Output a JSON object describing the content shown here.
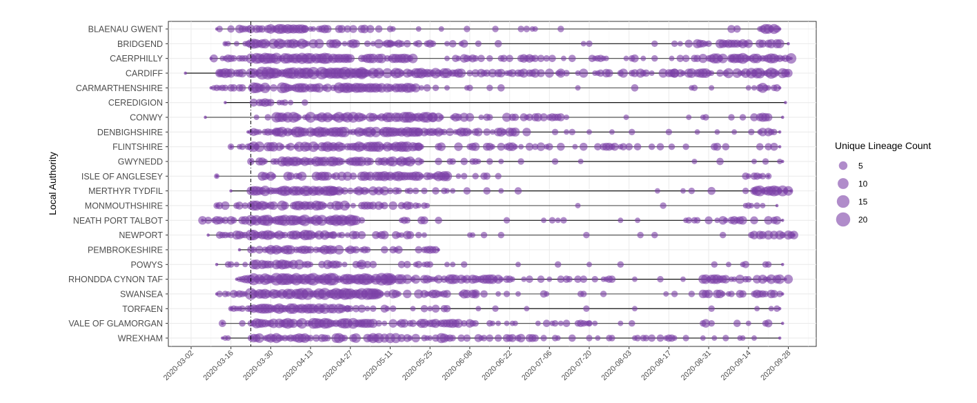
{
  "chart_data": {
    "type": "scatter",
    "subtype": "bubble-strip",
    "title": "",
    "xlabel": "",
    "ylabel": "Local Authority",
    "x_ticks": [
      "2020-03-02",
      "2020-03-16",
      "2020-03-30",
      "2020-04-13",
      "2020-04-27",
      "2020-05-11",
      "2020-05-25",
      "2020-06-08",
      "2020-06-22",
      "2020-07-06",
      "2020-07-20",
      "2020-08-03",
      "2020-08-17",
      "2020-08-31",
      "2020-09-14",
      "2020-09-28"
    ],
    "xlim": [
      "2020-02-22",
      "2020-10-07"
    ],
    "reference_line": {
      "date": "2020-03-23",
      "style": "dashed"
    },
    "point_color": "#7b3fa6",
    "point_alpha": 0.6,
    "legend": {
      "title": "Unique Lineage Count",
      "position": "right",
      "entries": [
        {
          "label": "5",
          "value": 5
        },
        {
          "label": "10",
          "value": 10
        },
        {
          "label": "15",
          "value": 15
        },
        {
          "label": "20",
          "value": 20
        }
      ]
    },
    "series": [
      {
        "name": "BLAENAU GWENT",
        "start": "2020-03-11",
        "end": "2020-09-25",
        "profile": [
          [
            9,
            14,
            0.5,
            3
          ],
          [
            17,
            23,
            0.8,
            6
          ],
          [
            23,
            40,
            0.9,
            8
          ],
          [
            40,
            60,
            0.6,
            6
          ],
          [
            60,
            70,
            0.4,
            5
          ],
          [
            70,
            130,
            0.15,
            2
          ],
          [
            130,
            180,
            0.03,
            2
          ],
          [
            180,
            200,
            0.2,
            4
          ],
          [
            200,
            206,
            0.9,
            9
          ]
        ]
      },
      {
        "name": "BRIDGEND",
        "start": "2020-03-14",
        "end": "2020-09-28",
        "profile": [
          [
            12,
            21,
            0.35,
            2
          ],
          [
            21,
            45,
            0.9,
            9
          ],
          [
            45,
            70,
            0.6,
            6
          ],
          [
            70,
            110,
            0.3,
            4
          ],
          [
            110,
            140,
            0.08,
            2
          ],
          [
            140,
            175,
            0.05,
            2
          ],
          [
            175,
            190,
            0.5,
            6
          ],
          [
            190,
            209,
            0.6,
            6
          ]
        ]
      },
      {
        "name": "CAERPHILLY",
        "start": "2020-03-09",
        "end": "2020-09-29",
        "profile": [
          [
            7,
            19,
            0.6,
            4
          ],
          [
            21,
            55,
            1.0,
            11
          ],
          [
            55,
            80,
            0.7,
            7
          ],
          [
            80,
            120,
            0.4,
            5
          ],
          [
            120,
            165,
            0.25,
            4
          ],
          [
            165,
            180,
            0.3,
            4
          ],
          [
            180,
            190,
            0.8,
            8
          ],
          [
            190,
            211,
            1.0,
            10
          ]
        ]
      },
      {
        "name": "CARDIFF",
        "start": "2020-02-29",
        "end": "2020-09-28",
        "profile": [
          [
            -2,
            10,
            0.2,
            2
          ],
          [
            10,
            19,
            0.9,
            8
          ],
          [
            21,
            60,
            1.0,
            16
          ],
          [
            60,
            95,
            0.8,
            9
          ],
          [
            95,
            130,
            0.6,
            6
          ],
          [
            130,
            170,
            0.5,
            6
          ],
          [
            170,
            195,
            0.7,
            8
          ],
          [
            195,
            210,
            0.9,
            11
          ]
        ]
      },
      {
        "name": "CARMARTHENSHIRE",
        "start": "2020-03-09",
        "end": "2020-09-25",
        "profile": [
          [
            7,
            18,
            0.5,
            3
          ],
          [
            21,
            55,
            0.95,
            10
          ],
          [
            55,
            80,
            0.8,
            8
          ],
          [
            80,
            110,
            0.25,
            3
          ],
          [
            110,
            170,
            0.06,
            3
          ],
          [
            170,
            200,
            0.15,
            3
          ],
          [
            200,
            206,
            0.8,
            8
          ]
        ]
      },
      {
        "name": "CEREDIGION",
        "start": "2020-03-14",
        "end": "2020-09-27",
        "profile": [
          [
            22,
            34,
            0.5,
            5
          ],
          [
            34,
            40,
            0.2,
            2
          ],
          [
            204,
            208,
            0.3,
            1
          ]
        ]
      },
      {
        "name": "CONWY",
        "start": "2020-03-07",
        "end": "2020-09-26",
        "profile": [
          [
            22,
            30,
            0.2,
            2
          ],
          [
            30,
            85,
            0.9,
            10
          ],
          [
            85,
            130,
            0.5,
            6
          ],
          [
            130,
            175,
            0.1,
            2
          ],
          [
            175,
            200,
            0.3,
            4
          ],
          [
            200,
            207,
            0.6,
            6
          ]
        ]
      },
      {
        "name": "DENBIGHSHIRE",
        "start": "2020-03-22",
        "end": "2020-09-25",
        "profile": [
          [
            21,
            30,
            0.6,
            4
          ],
          [
            30,
            80,
            0.95,
            10
          ],
          [
            80,
            120,
            0.6,
            6
          ],
          [
            120,
            170,
            0.15,
            2
          ],
          [
            170,
            200,
            0.15,
            2
          ],
          [
            200,
            206,
            0.7,
            6
          ]
        ]
      },
      {
        "name": "FLINTSHIRE",
        "start": "2020-03-16",
        "end": "2020-09-25",
        "profile": [
          [
            14,
            20,
            0.3,
            2
          ],
          [
            21,
            80,
            0.85,
            9
          ],
          [
            80,
            130,
            0.5,
            5
          ],
          [
            130,
            160,
            0.4,
            4
          ],
          [
            160,
            200,
            0.25,
            4
          ],
          [
            200,
            206,
            0.4,
            4
          ]
        ]
      },
      {
        "name": "GWYNEDD",
        "start": "2020-03-23",
        "end": "2020-09-26",
        "profile": [
          [
            21,
            30,
            0.6,
            4
          ],
          [
            30,
            80,
            0.85,
            8
          ],
          [
            80,
            110,
            0.3,
            3
          ],
          [
            110,
            165,
            0.04,
            2
          ],
          [
            165,
            210,
            0.1,
            3
          ]
        ]
      },
      {
        "name": "ISLE OF ANGLESEY",
        "start": "2020-03-11",
        "end": "2020-09-21",
        "profile": [
          [
            9,
            15,
            0.3,
            2
          ],
          [
            25,
            60,
            0.6,
            6
          ],
          [
            60,
            90,
            0.8,
            8
          ],
          [
            90,
            110,
            0.2,
            3
          ],
          [
            110,
            195,
            0.02,
            2
          ],
          [
            195,
            203,
            0.6,
            3
          ]
        ]
      },
      {
        "name": "MERTHYR TYDFIL",
        "start": "2020-03-16",
        "end": "2020-09-29",
        "profile": [
          [
            14,
            20,
            0.3,
            2
          ],
          [
            21,
            50,
            0.95,
            9
          ],
          [
            50,
            80,
            0.6,
            6
          ],
          [
            80,
            115,
            0.25,
            3
          ],
          [
            115,
            180,
            0.05,
            2
          ],
          [
            180,
            198,
            0.3,
            4
          ],
          [
            198,
            210,
            0.95,
            10
          ]
        ]
      },
      {
        "name": "MONMOUTHSHIRE",
        "start": "2020-03-11",
        "end": "2020-09-24",
        "profile": [
          [
            9,
            19,
            0.7,
            5
          ],
          [
            21,
            55,
            0.8,
            8
          ],
          [
            55,
            85,
            0.5,
            5
          ],
          [
            85,
            110,
            0.1,
            2
          ],
          [
            110,
            195,
            0.02,
            2
          ],
          [
            195,
            205,
            0.3,
            2
          ]
        ]
      },
      {
        "name": "NEATH PORT TALBOT",
        "start": "2020-03-06",
        "end": "2020-09-26",
        "profile": [
          [
            4,
            19,
            0.6,
            5
          ],
          [
            21,
            58,
            0.95,
            12
          ],
          [
            58,
            90,
            0.4,
            4
          ],
          [
            90,
            130,
            0.1,
            2
          ],
          [
            130,
            175,
            0.05,
            2
          ],
          [
            175,
            207,
            0.4,
            5
          ]
        ]
      },
      {
        "name": "NEWPORT",
        "start": "2020-03-08",
        "end": "2020-09-30",
        "profile": [
          [
            10,
            19,
            0.8,
            6
          ],
          [
            21,
            50,
            0.95,
            10
          ],
          [
            50,
            80,
            0.5,
            5
          ],
          [
            80,
            110,
            0.15,
            3
          ],
          [
            110,
            180,
            0.02,
            2
          ],
          [
            180,
            190,
            0.1,
            2
          ],
          [
            190,
            212,
            0.6,
            6
          ]
        ]
      },
      {
        "name": "PEMBROKESHIRE",
        "start": "2020-03-19",
        "end": "2020-05-28",
        "profile": [
          [
            21,
            60,
            0.7,
            7
          ],
          [
            60,
            87,
            0.4,
            4
          ]
        ]
      },
      {
        "name": "POWYS",
        "start": "2020-03-11",
        "end": "2020-09-26",
        "profile": [
          [
            9,
            19,
            0.4,
            2
          ],
          [
            21,
            60,
            0.7,
            8
          ],
          [
            60,
            90,
            0.3,
            4
          ],
          [
            90,
            140,
            0.1,
            2
          ],
          [
            140,
            190,
            0.06,
            2
          ],
          [
            190,
            207,
            0.2,
            3
          ]
        ]
      },
      {
        "name": "RHONDDA CYNON TAF",
        "start": "2020-03-18",
        "end": "2020-09-27",
        "profile": [
          [
            17,
            20,
            0.8,
            5
          ],
          [
            21,
            70,
            1.0,
            15
          ],
          [
            70,
            110,
            0.8,
            8
          ],
          [
            110,
            150,
            0.3,
            3
          ],
          [
            150,
            180,
            0.1,
            2
          ],
          [
            180,
            210,
            0.7,
            7
          ]
        ]
      },
      {
        "name": "SWANSEA",
        "start": "2020-03-11",
        "end": "2020-09-26",
        "profile": [
          [
            9,
            19,
            0.7,
            5
          ],
          [
            21,
            65,
            1.0,
            13
          ],
          [
            65,
            100,
            0.6,
            6
          ],
          [
            100,
            140,
            0.2,
            3
          ],
          [
            140,
            180,
            0.05,
            2
          ],
          [
            180,
            208,
            0.5,
            5
          ]
        ]
      },
      {
        "name": "TORFAEN",
        "start": "2020-03-16",
        "end": "2020-09-25",
        "profile": [
          [
            14,
            20,
            0.5,
            2
          ],
          [
            21,
            55,
            0.9,
            9
          ],
          [
            55,
            90,
            0.4,
            4
          ],
          [
            90,
            130,
            0.1,
            2
          ],
          [
            130,
            180,
            0.02,
            2
          ],
          [
            180,
            206,
            0.15,
            2
          ]
        ]
      },
      {
        "name": "VALE OF GLAMORGAN",
        "start": "2020-03-13",
        "end": "2020-09-26",
        "profile": [
          [
            11,
            19,
            0.3,
            4
          ],
          [
            21,
            60,
            0.95,
            10
          ],
          [
            60,
            100,
            0.6,
            6
          ],
          [
            100,
            140,
            0.3,
            3
          ],
          [
            140,
            180,
            0.08,
            2
          ],
          [
            180,
            207,
            0.35,
            5
          ]
        ]
      },
      {
        "name": "WREXHAM",
        "start": "2020-03-13",
        "end": "2020-09-25",
        "profile": [
          [
            12,
            15,
            0.6,
            2
          ],
          [
            21,
            90,
            0.8,
            8
          ],
          [
            90,
            130,
            0.6,
            5
          ],
          [
            130,
            180,
            0.35,
            3
          ],
          [
            180,
            206,
            0.1,
            2
          ]
        ]
      }
    ]
  }
}
